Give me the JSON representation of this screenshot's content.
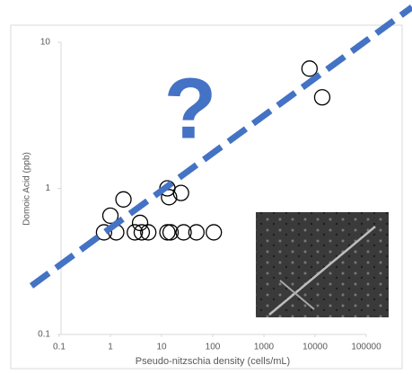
{
  "chart_data": {
    "type": "scatter",
    "x_label": "Pseudo-nitzschia density (cells/mL)",
    "y_label": "Domoic Acid (ppb)",
    "annotation": "?",
    "annotation_color": "#4472c4",
    "x_log": true,
    "y_log": true,
    "xlim": [
      0.1,
      100000
    ],
    "ylim": [
      0.1,
      10
    ],
    "xticks": [
      0.1,
      1,
      10,
      100,
      1000,
      10000,
      100000
    ],
    "yticks": [
      0.1,
      1,
      10
    ],
    "series": [
      {
        "color": "#000000",
        "x": [
          0.75,
          1,
          1.3,
          1.8,
          3,
          3.8,
          4.1,
          5.5,
          13,
          15,
          13,
          14,
          24,
          27,
          48,
          105,
          7800,
          13800
        ],
        "values": [
          0.5,
          0.65,
          0.5,
          0.84,
          0.5,
          0.58,
          0.5,
          0.5,
          0.5,
          0.5,
          1.0,
          0.87,
          0.93,
          0.5,
          0.5,
          0.5,
          6.6,
          4.2
        ]
      }
    ]
  }
}
